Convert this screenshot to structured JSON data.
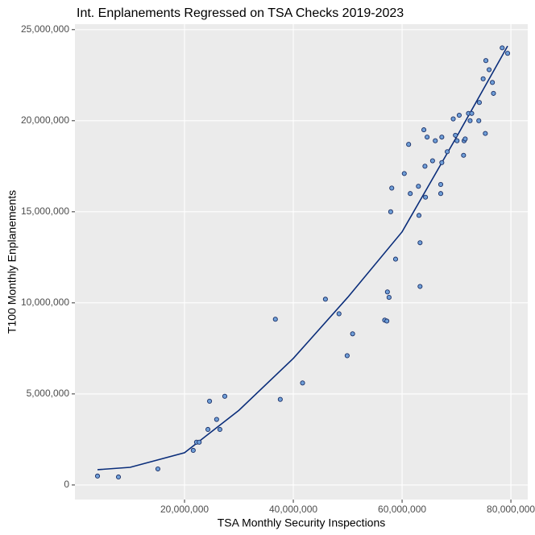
{
  "chart_data": {
    "type": "scatter",
    "title": "Int. Enplanements Regressed on TSA Checks 2019-2023",
    "x_label": "TSA Monthly Security Inspections",
    "y_label": "T100 Monthly Enplanements",
    "xlim": [
      -150000,
      83100000
    ],
    "ylim": [
      -800000,
      25300000
    ],
    "xticks": [
      {
        "value": 20000000,
        "label": "20,000,000"
      },
      {
        "value": 40000000,
        "label": "40,000,000"
      },
      {
        "value": 60000000,
        "label": "60,000,000"
      },
      {
        "value": 80000000,
        "label": "80,000,000"
      }
    ],
    "yticks": [
      0,
      {
        "value": 5000000,
        "label": "5,000,000"
      },
      {
        "value": 10000000,
        "label": "10,000,000"
      },
      {
        "value": 15000000,
        "label": "15,000,000"
      },
      {
        "value": 20000000,
        "label": "20,000,000"
      },
      {
        "value": 25000000,
        "label": "25,000,000"
      }
    ],
    "grid": true,
    "panel_color": "#ebebeb",
    "points": {
      "color": "#6f9fd8",
      "edge_color": "#1b2f66",
      "x": [
        4000000,
        7850000,
        15100000,
        21600000,
        22200000,
        22700000,
        24300000,
        24600000,
        25900000,
        26500000,
        27400000,
        36700000,
        37600000,
        41700000,
        45900000,
        48400000,
        49900000,
        50900000,
        56800000,
        57200000,
        57300000,
        57600000,
        57900000,
        58100000,
        58800000,
        60400000,
        61200000,
        61500000,
        63000000,
        63100000,
        63300000,
        63300000,
        64000000,
        64200000,
        64300000,
        64600000,
        65600000,
        66100000,
        67100000,
        67100000,
        67300000,
        67300000,
        68300000,
        69400000,
        69800000,
        70100000,
        70500000,
        71300000,
        71400000,
        71600000,
        72200000,
        72500000,
        72800000,
        74100000,
        74200000,
        74900000,
        75300000,
        75400000,
        76000000,
        76600000,
        76800000,
        78400000,
        79400000
      ],
      "y": [
        490000,
        440000,
        880000,
        1900000,
        2350000,
        2350000,
        3050000,
        4600000,
        3600000,
        3050000,
        4870000,
        9100000,
        4700000,
        5600000,
        10200000,
        9400000,
        7100000,
        8300000,
        9050000,
        9000000,
        10600000,
        10300000,
        15000000,
        16300000,
        12400000,
        17100000,
        18700000,
        16000000,
        16400000,
        14800000,
        13300000,
        10900000,
        19500000,
        17500000,
        15800000,
        19100000,
        17800000,
        18900000,
        16000000,
        16500000,
        17700000,
        19100000,
        18300000,
        20100000,
        19200000,
        18900000,
        20300000,
        18100000,
        18900000,
        19000000,
        20400000,
        20000000,
        20400000,
        20000000,
        21000000,
        22300000,
        19300000,
        23300000,
        22800000,
        22100000,
        21500000,
        24000000,
        23700000
      ]
    },
    "fit": {
      "color": "#0a2d7a",
      "x": [
        4000000,
        10000000,
        20000000,
        30000000,
        40000000,
        50000000,
        60000000,
        70000000,
        79400000
      ],
      "y": [
        840000,
        970000,
        1770000,
        4100000,
        6950000,
        10300000,
        13900000,
        19100000,
        24100000
      ]
    }
  }
}
